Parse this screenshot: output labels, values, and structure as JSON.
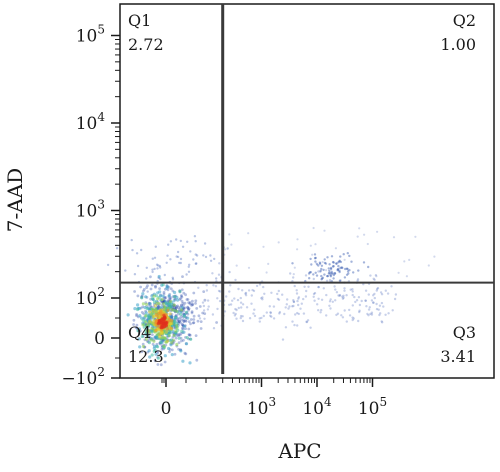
{
  "chart_data": {
    "type": "scatter",
    "title": "",
    "xlabel": "APC",
    "ylabel": "7-AAD",
    "x_scale": "biexponential",
    "y_scale": "biexponential",
    "x_ticks": [
      {
        "value": 0,
        "label": "0"
      },
      {
        "value": 1000,
        "label": "10",
        "sup": "3"
      },
      {
        "value": 10000,
        "label": "10",
        "sup": "4"
      },
      {
        "value": 100000,
        "label": "10",
        "sup": "5"
      }
    ],
    "y_ticks": [
      {
        "value": 100000,
        "label": "10",
        "sup": "5"
      },
      {
        "value": 10000,
        "label": "10",
        "sup": "4"
      },
      {
        "value": 1000,
        "label": "10",
        "sup": "3"
      },
      {
        "value": 100,
        "label": "10",
        "sup": "2"
      },
      {
        "value": 0,
        "label": "0"
      },
      {
        "value": -100,
        "label": "−10",
        "sup": "2"
      }
    ],
    "gates": {
      "x": 200,
      "y": 150
    },
    "quadrants": [
      {
        "name": "Q1",
        "percent": "2.72",
        "position": "top-left"
      },
      {
        "name": "Q2",
        "percent": "1.00",
        "position": "top-right"
      },
      {
        "name": "Q3",
        "percent": "3.41",
        "position": "bottom-right"
      },
      {
        "name": "Q4",
        "percent": "12.3",
        "position": "bottom-left"
      }
    ],
    "colors": {
      "gate_line": "#3a3a3a",
      "axis": "#1a1a1a",
      "density_low": "#1f3f9e",
      "density_high": "#e0301e"
    }
  }
}
